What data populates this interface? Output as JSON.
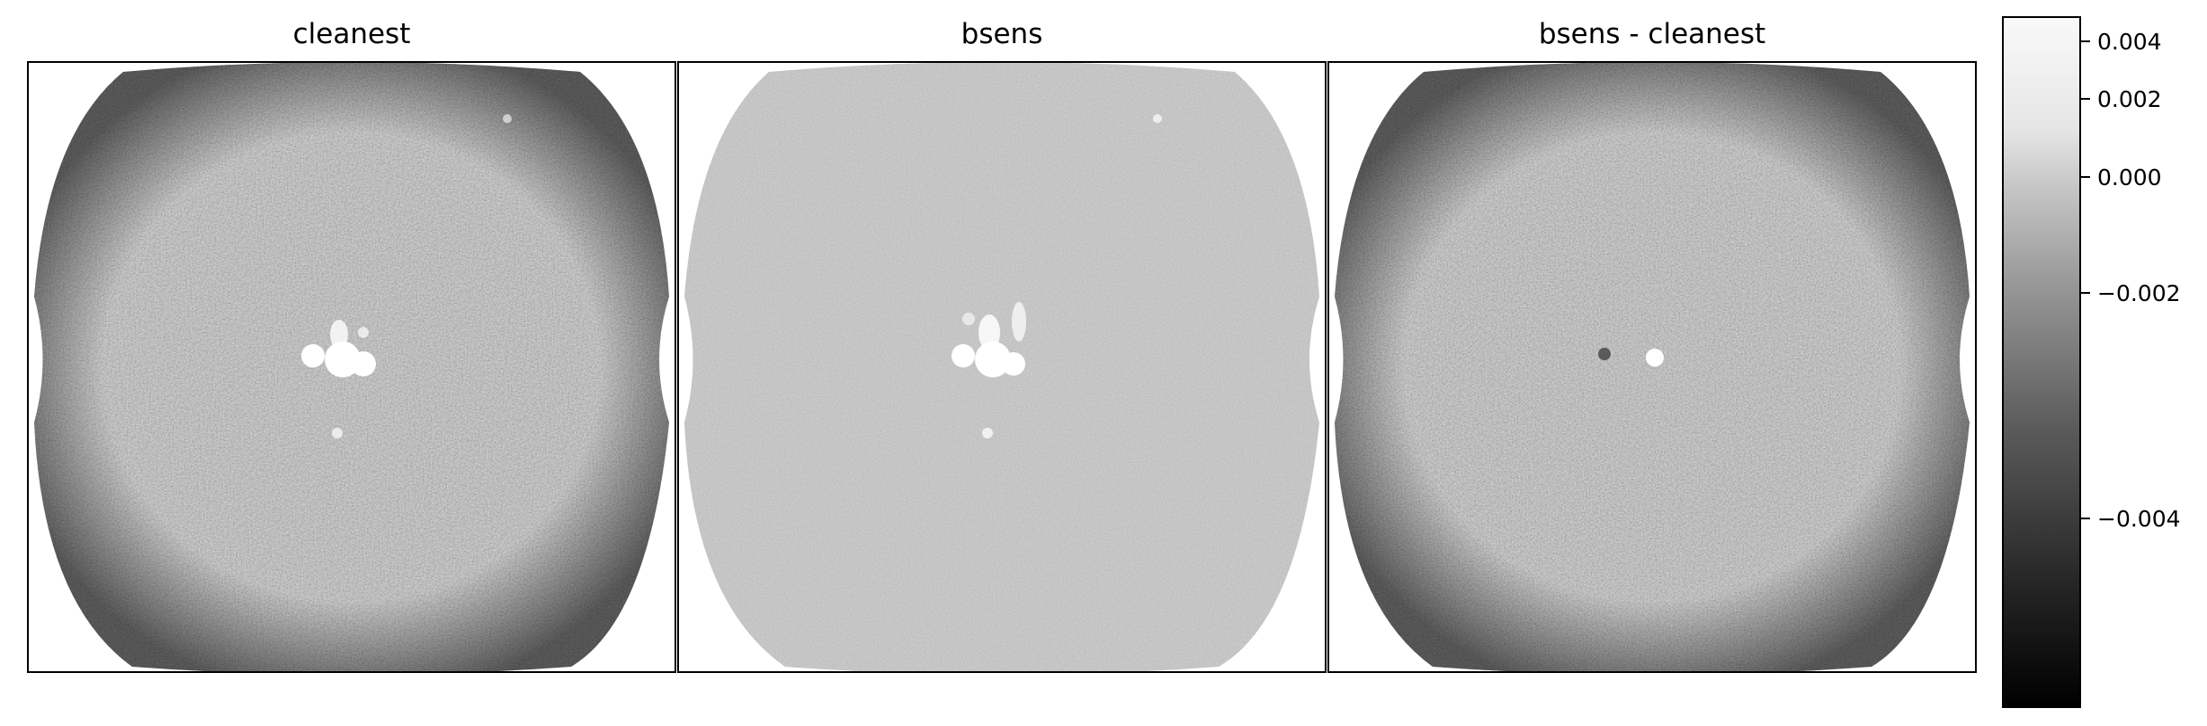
{
  "panels": [
    {
      "title": "cleanest"
    },
    {
      "title": "bsens"
    },
    {
      "title": "bsens - cleanest"
    }
  ],
  "colorbar": {
    "ticks": [
      {
        "label": "0.004",
        "value": 0.004
      },
      {
        "label": "0.002",
        "value": 0.002
      },
      {
        "label": "0.000",
        "value": 0.0
      },
      {
        "label": "−0.002",
        "value": -0.002
      },
      {
        "label": "−0.004",
        "value": -0.004
      }
    ],
    "colormap": "gray"
  }
}
